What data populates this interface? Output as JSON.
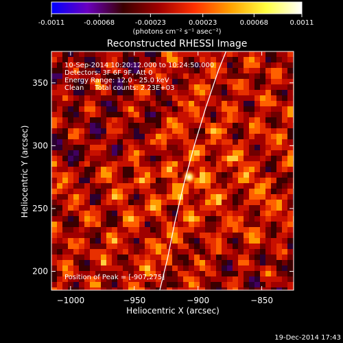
{
  "colorbar": {
    "tick_labels": [
      "-0.0011",
      "-0.00068",
      "-0.00023",
      "0.00023",
      "0.00068",
      "0.0011"
    ],
    "tick_values": [
      -0.0011,
      -0.00068,
      -0.00023,
      0.00023,
      0.00068,
      0.0011
    ],
    "range": [
      -0.0011,
      0.0011
    ],
    "unit_label": "(photons cm⁻² s⁻¹ asec⁻²)",
    "colors": [
      "#0000ff",
      "#6a00c0",
      "#3a0000",
      "#a00000",
      "#ff3000",
      "#ffa000",
      "#ffff40",
      "#ffffff"
    ]
  },
  "chart_data": {
    "type": "heatmap",
    "title": "Reconstructed RHESSI Image",
    "xlabel": "Heliocentric X (arcsec)",
    "ylabel": "Heliocentric Y (arcsec)",
    "xlim": [
      -1015,
      -825
    ],
    "ylim": [
      185,
      375
    ],
    "x_ticks": [
      -1000,
      -950,
      -900,
      -850
    ],
    "y_ticks": [
      200,
      250,
      300,
      350
    ],
    "x_tick_labels": [
      "−1000",
      "−950",
      "−900",
      "−850"
    ],
    "y_tick_labels": [
      "200",
      "250",
      "300",
      "350"
    ],
    "peak": [
      -907,
      275
    ],
    "annotations": {
      "time": "10-Sep-2014 10:20:12.000 to 10:24:50.000",
      "detectors": "Detectors: 3F 6F 9F, Att 0",
      "energy": "Energy Range: 12.0 - 25.0 keV",
      "clean": "Clean     Total counts: 2.23E+03",
      "peak_text": "Position of Peak = [-907,275]"
    },
    "limb_curve": [
      [
        -930,
        185
      ],
      [
        -924,
        210
      ],
      [
        -918,
        240
      ],
      [
        -911,
        270
      ],
      [
        -903,
        300
      ],
      [
        -894,
        330
      ],
      [
        -884,
        360
      ],
      [
        -878,
        375
      ]
    ]
  },
  "footer": {
    "timestamp": "19-Dec-2014 17:43"
  }
}
